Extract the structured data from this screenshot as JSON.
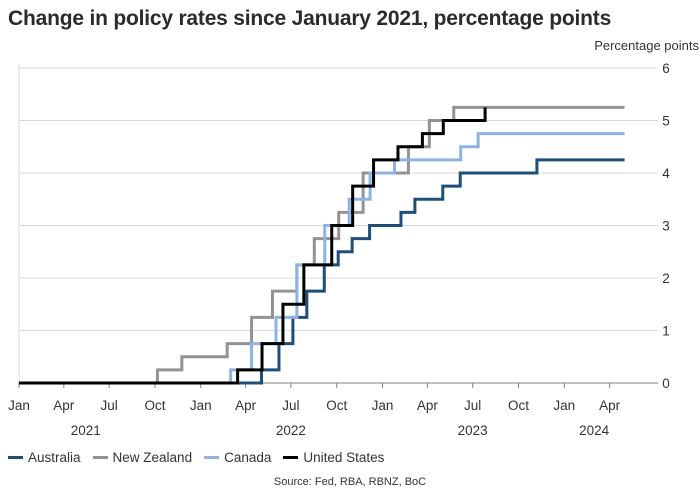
{
  "chart_data": {
    "type": "line",
    "step": true,
    "title": "Change in policy rates since January 2021, percentage points",
    "ylabel": "Percentage points",
    "ylim": [
      0,
      6
    ],
    "yticks": [
      0,
      1,
      2,
      3,
      4,
      5,
      6
    ],
    "xlim": [
      "2021-01-01",
      "2024-06-01"
    ],
    "xticks": [
      {
        "date": "2021-01-01",
        "label": "Jan"
      },
      {
        "date": "2021-04-01",
        "label": "Apr"
      },
      {
        "date": "2021-07-01",
        "label": "Jul"
      },
      {
        "date": "2021-10-01",
        "label": "Oct"
      },
      {
        "date": "2022-01-01",
        "label": "Jan"
      },
      {
        "date": "2022-04-01",
        "label": "Apr"
      },
      {
        "date": "2022-07-01",
        "label": "Jul"
      },
      {
        "date": "2022-10-01",
        "label": "Oct"
      },
      {
        "date": "2023-01-01",
        "label": "Jan"
      },
      {
        "date": "2023-04-01",
        "label": "Apr"
      },
      {
        "date": "2023-07-01",
        "label": "Jul"
      },
      {
        "date": "2023-10-01",
        "label": "Oct"
      },
      {
        "date": "2024-01-01",
        "label": "Jan"
      },
      {
        "date": "2024-04-01",
        "label": "Apr"
      }
    ],
    "year_labels": [
      {
        "date": "2021-05-15",
        "label": "2021"
      },
      {
        "date": "2022-07-01",
        "label": "2022"
      },
      {
        "date": "2023-07-01",
        "label": "2023"
      },
      {
        "date": "2024-03-01",
        "label": "2024"
      }
    ],
    "grid": true,
    "legend_position": "bottom",
    "series": [
      {
        "name": "Australia",
        "color": "#1f4e79",
        "points": [
          [
            "2021-01-01",
            0
          ],
          [
            "2022-05-03",
            0.25
          ],
          [
            "2022-06-07",
            0.75
          ],
          [
            "2022-07-05",
            1.25
          ],
          [
            "2022-08-02",
            1.75
          ],
          [
            "2022-09-06",
            2.25
          ],
          [
            "2022-10-04",
            2.5
          ],
          [
            "2022-11-01",
            2.75
          ],
          [
            "2022-12-06",
            3.0
          ],
          [
            "2023-02-07",
            3.25
          ],
          [
            "2023-03-07",
            3.5
          ],
          [
            "2023-05-02",
            3.75
          ],
          [
            "2023-06-06",
            4.0
          ],
          [
            "2023-11-07",
            4.25
          ],
          [
            "2024-05-01",
            4.25
          ]
        ]
      },
      {
        "name": "New Zealand",
        "color": "#939393",
        "points": [
          [
            "2021-01-01",
            0
          ],
          [
            "2021-10-06",
            0.25
          ],
          [
            "2021-11-24",
            0.5
          ],
          [
            "2022-02-23",
            0.75
          ],
          [
            "2022-04-13",
            1.25
          ],
          [
            "2022-05-25",
            1.75
          ],
          [
            "2022-07-13",
            2.25
          ],
          [
            "2022-08-17",
            2.75
          ],
          [
            "2022-10-05",
            3.25
          ],
          [
            "2022-11-23",
            4.0
          ],
          [
            "2023-02-22",
            4.5
          ],
          [
            "2023-04-05",
            5.0
          ],
          [
            "2023-05-24",
            5.25
          ],
          [
            "2024-05-01",
            5.25
          ]
        ]
      },
      {
        "name": "Canada",
        "color": "#8db3e2",
        "points": [
          [
            "2021-01-01",
            0
          ],
          [
            "2022-03-02",
            0.25
          ],
          [
            "2022-04-13",
            0.75
          ],
          [
            "2022-06-01",
            1.25
          ],
          [
            "2022-07-13",
            2.25
          ],
          [
            "2022-09-07",
            3.0
          ],
          [
            "2022-10-26",
            3.5
          ],
          [
            "2022-12-07",
            4.0
          ],
          [
            "2023-01-25",
            4.25
          ],
          [
            "2023-06-07",
            4.5
          ],
          [
            "2023-07-12",
            4.75
          ],
          [
            "2024-05-01",
            4.75
          ]
        ]
      },
      {
        "name": "United States",
        "color": "#000000",
        "points": [
          [
            "2021-01-01",
            0
          ],
          [
            "2022-03-16",
            0.25
          ],
          [
            "2022-05-04",
            0.75
          ],
          [
            "2022-06-15",
            1.5
          ],
          [
            "2022-07-27",
            2.25
          ],
          [
            "2022-09-21",
            3.0
          ],
          [
            "2022-11-02",
            3.75
          ],
          [
            "2022-12-14",
            4.25
          ],
          [
            "2023-02-01",
            4.5
          ],
          [
            "2023-03-22",
            4.75
          ],
          [
            "2023-05-03",
            5.0
          ],
          [
            "2023-07-26",
            5.25
          ],
          [
            "2023-07-26",
            5.25
          ]
        ]
      }
    ],
    "source": "Source: Fed, RBA, RBNZ, BoC"
  }
}
